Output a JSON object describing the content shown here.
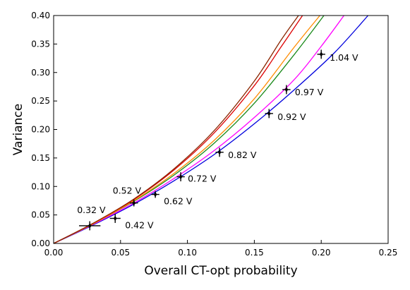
{
  "chart_data": {
    "type": "scatter",
    "xlabel": "Overall CT-opt probability",
    "ylabel": "Variance",
    "xlim": [
      0,
      0.25
    ],
    "ylim": [
      0,
      0.4
    ],
    "x_ticks": [
      "0.00",
      "0.05",
      "0.10",
      "0.15",
      "0.20",
      "0.25"
    ],
    "y_ticks": [
      "0.00",
      "0.05",
      "0.10",
      "0.15",
      "0.20",
      "0.25",
      "0.30",
      "0.35",
      "0.40"
    ],
    "grid": false,
    "points": [
      {
        "label": "0.32 V",
        "x": 0.027,
        "y": 0.031,
        "xerr": 0.008,
        "yerr": 0.008
      },
      {
        "label": "0.42 V",
        "x": 0.046,
        "y": 0.044,
        "xerr": 0.004,
        "yerr": 0.008
      },
      {
        "label": "0.52 V",
        "x": 0.06,
        "y": 0.071,
        "xerr": 0.003,
        "yerr": 0.006
      },
      {
        "label": "0.62 V",
        "x": 0.076,
        "y": 0.086,
        "xerr": 0.003,
        "yerr": 0.006
      },
      {
        "label": "0.72 V",
        "x": 0.095,
        "y": 0.117,
        "xerr": 0.003,
        "yerr": 0.008
      },
      {
        "label": "0.82 V",
        "x": 0.124,
        "y": 0.16,
        "xerr": 0.003,
        "yerr": 0.008
      },
      {
        "label": "0.92 V",
        "x": 0.161,
        "y": 0.228,
        "xerr": 0.003,
        "yerr": 0.008
      },
      {
        "label": "0.97 V",
        "x": 0.174,
        "y": 0.27,
        "xerr": 0.003,
        "yerr": 0.008
      },
      {
        "label": "1.04 V",
        "x": 0.2,
        "y": 0.332,
        "xerr": 0.003,
        "yerr": 0.008
      }
    ],
    "curves": [
      {
        "color": "#0000dd",
        "x": [
          0,
          0.03,
          0.06,
          0.09,
          0.12,
          0.15,
          0.18,
          0.21,
          0.235
        ],
        "y": [
          0,
          0.033,
          0.069,
          0.11,
          0.156,
          0.21,
          0.27,
          0.335,
          0.4
        ]
      },
      {
        "color": "#ff00ff",
        "x": [
          0,
          0.03,
          0.06,
          0.09,
          0.12,
          0.15,
          0.18,
          0.2,
          0.217
        ],
        "y": [
          0,
          0.034,
          0.071,
          0.114,
          0.163,
          0.221,
          0.288,
          0.346,
          0.4
        ]
      },
      {
        "color": "#1a8a1a",
        "x": [
          0,
          0.03,
          0.06,
          0.09,
          0.12,
          0.15,
          0.18,
          0.202
        ],
        "y": [
          0,
          0.035,
          0.074,
          0.12,
          0.176,
          0.246,
          0.332,
          0.4
        ]
      },
      {
        "color": "#ff8c00",
        "x": [
          0,
          0.03,
          0.06,
          0.09,
          0.12,
          0.15,
          0.18,
          0.199
        ],
        "y": [
          0,
          0.035,
          0.075,
          0.123,
          0.181,
          0.254,
          0.345,
          0.4
        ]
      },
      {
        "color": "#dd0000",
        "x": [
          0,
          0.03,
          0.06,
          0.09,
          0.12,
          0.15,
          0.17,
          0.186
        ],
        "y": [
          0,
          0.036,
          0.077,
          0.129,
          0.194,
          0.277,
          0.345,
          0.4
        ]
      },
      {
        "color": "#8b2500",
        "x": [
          0,
          0.03,
          0.06,
          0.09,
          0.12,
          0.15,
          0.17,
          0.183
        ],
        "y": [
          0,
          0.036,
          0.078,
          0.131,
          0.198,
          0.285,
          0.357,
          0.4
        ]
      }
    ],
    "marker_color": "#000000"
  }
}
